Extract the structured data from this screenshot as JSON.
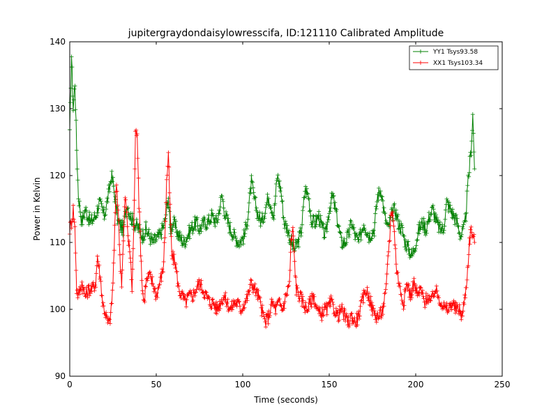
{
  "chart_data": {
    "type": "line",
    "title": "jupitergraydondaisylowresscifa, ID:121110 Calibrated Amplitude",
    "xlabel": "Time (seconds)",
    "ylabel": "Power in Kelvin",
    "xlim": [
      0,
      250
    ],
    "ylim": [
      90,
      140
    ],
    "xticks": [
      "0",
      "50",
      "100",
      "150",
      "200",
      "250"
    ],
    "yticks": [
      "90",
      "100",
      "110",
      "120",
      "130",
      "140"
    ],
    "grid": false,
    "legend_position": "top-right",
    "marker": "plus",
    "series": [
      {
        "name": "YY1 Tsys93.58",
        "color": "#008000",
        "anchors": [
          [
            0,
            126
          ],
          [
            1,
            138
          ],
          [
            2,
            130
          ],
          [
            3,
            134
          ],
          [
            4,
            124
          ],
          [
            5,
            117
          ],
          [
            6,
            115
          ],
          [
            7,
            113
          ],
          [
            9,
            115
          ],
          [
            12,
            113
          ],
          [
            15,
            114
          ],
          [
            17,
            116
          ],
          [
            20,
            114
          ],
          [
            23,
            118
          ],
          [
            24,
            120
          ],
          [
            25,
            119
          ],
          [
            28,
            113
          ],
          [
            31,
            112
          ],
          [
            33,
            116
          ],
          [
            35,
            114
          ],
          [
            37,
            113
          ],
          [
            40,
            112
          ],
          [
            42,
            111
          ],
          [
            44,
            112
          ],
          [
            48,
            110
          ],
          [
            52,
            111
          ],
          [
            55,
            113
          ],
          [
            57,
            117
          ],
          [
            58,
            112
          ],
          [
            60,
            113
          ],
          [
            63,
            111
          ],
          [
            66,
            110
          ],
          [
            70,
            112
          ],
          [
            73,
            113
          ],
          [
            75,
            112
          ],
          [
            78,
            113
          ],
          [
            80,
            113
          ],
          [
            82,
            114
          ],
          [
            85,
            113
          ],
          [
            88,
            117
          ],
          [
            90,
            114
          ],
          [
            93,
            112
          ],
          [
            95,
            111
          ],
          [
            98,
            110
          ],
          [
            101,
            111
          ],
          [
            103,
            114
          ],
          [
            105,
            119
          ],
          [
            107,
            116
          ],
          [
            109,
            114
          ],
          [
            111,
            113
          ],
          [
            113,
            115
          ],
          [
            115,
            117
          ],
          [
            118,
            114
          ],
          [
            120,
            120
          ],
          [
            122,
            118
          ],
          [
            124,
            113
          ],
          [
            126,
            112
          ],
          [
            128,
            110
          ],
          [
            130,
            109
          ],
          [
            132,
            110
          ],
          [
            134,
            112
          ],
          [
            136,
            118
          ],
          [
            138,
            117
          ],
          [
            140,
            113
          ],
          [
            142,
            113
          ],
          [
            144,
            114
          ],
          [
            146,
            112
          ],
          [
            148,
            111
          ],
          [
            150,
            115
          ],
          [
            152,
            117
          ],
          [
            155,
            113
          ],
          [
            157,
            110
          ],
          [
            159,
            110
          ],
          [
            161,
            111
          ],
          [
            163,
            113
          ],
          [
            165,
            111
          ],
          [
            167,
            110
          ],
          [
            170,
            113
          ],
          [
            173,
            111
          ],
          [
            176,
            112
          ],
          [
            178,
            117
          ],
          [
            180,
            118
          ],
          [
            182,
            114
          ],
          [
            184,
            112
          ],
          [
            186,
            114
          ],
          [
            188,
            115
          ],
          [
            190,
            113
          ],
          [
            192,
            112
          ],
          [
            194,
            110
          ],
          [
            196,
            109
          ],
          [
            198,
            108
          ],
          [
            200,
            110
          ],
          [
            202,
            112
          ],
          [
            204,
            113
          ],
          [
            206,
            112
          ],
          [
            208,
            114
          ],
          [
            210,
            115
          ],
          [
            212,
            113
          ],
          [
            214,
            112
          ],
          [
            216,
            112
          ],
          [
            218,
            116
          ],
          [
            220,
            115
          ],
          [
            222,
            114
          ],
          [
            224,
            113
          ],
          [
            226,
            111
          ],
          [
            228,
            112
          ],
          [
            229,
            114
          ],
          [
            230,
            118
          ],
          [
            231,
            121
          ],
          [
            232,
            124
          ],
          [
            233,
            129
          ],
          [
            234,
            121
          ]
        ]
      },
      {
        "name": "XX1 Tsys103.34",
        "color": "#ff0000",
        "anchors": [
          [
            0,
            112
          ],
          [
            1,
            113
          ],
          [
            2,
            115
          ],
          [
            3,
            112
          ],
          [
            4,
            103
          ],
          [
            5,
            102
          ],
          [
            7,
            104
          ],
          [
            9,
            102
          ],
          [
            11,
            103
          ],
          [
            13,
            103
          ],
          [
            15,
            104
          ],
          [
            16,
            108
          ],
          [
            17,
            106
          ],
          [
            18,
            104
          ],
          [
            19,
            101
          ],
          [
            20,
            100
          ],
          [
            21,
            99
          ],
          [
            22,
            98
          ],
          [
            23,
            98
          ],
          [
            24,
            100
          ],
          [
            25,
            104
          ],
          [
            26,
            112
          ],
          [
            27,
            119
          ],
          [
            28,
            115
          ],
          [
            29,
            108
          ],
          [
            30,
            104
          ],
          [
            31,
            110
          ],
          [
            32,
            117
          ],
          [
            33,
            114
          ],
          [
            34,
            110
          ],
          [
            35,
            108
          ],
          [
            36,
            103
          ],
          [
            37,
            112
          ],
          [
            38,
            126
          ],
          [
            39,
            127
          ],
          [
            40,
            116
          ],
          [
            41,
            109
          ],
          [
            42,
            103
          ],
          [
            43,
            101
          ],
          [
            44,
            104
          ],
          [
            46,
            105
          ],
          [
            48,
            104
          ],
          [
            50,
            102
          ],
          [
            52,
            104
          ],
          [
            54,
            106
          ],
          [
            55,
            111
          ],
          [
            56,
            119
          ],
          [
            57,
            123
          ],
          [
            58,
            115
          ],
          [
            59,
            108
          ],
          [
            61,
            107
          ],
          [
            63,
            103
          ],
          [
            65,
            102
          ],
          [
            67,
            101
          ],
          [
            69,
            102
          ],
          [
            71,
            102
          ],
          [
            73,
            103
          ],
          [
            75,
            104
          ],
          [
            77,
            103
          ],
          [
            79,
            102
          ],
          [
            81,
            101
          ],
          [
            83,
            101
          ],
          [
            85,
            100
          ],
          [
            87,
            101
          ],
          [
            89,
            102
          ],
          [
            91,
            101
          ],
          [
            93,
            100
          ],
          [
            95,
            101
          ],
          [
            97,
            101
          ],
          [
            99,
            100
          ],
          [
            101,
            101
          ],
          [
            103,
            102
          ],
          [
            105,
            104
          ],
          [
            107,
            103
          ],
          [
            109,
            102
          ],
          [
            111,
            100
          ],
          [
            113,
            98
          ],
          [
            115,
            99
          ],
          [
            117,
            101
          ],
          [
            119,
            100
          ],
          [
            121,
            101
          ],
          [
            123,
            100
          ],
          [
            125,
            102
          ],
          [
            127,
            104
          ],
          [
            128,
            110
          ],
          [
            129,
            112
          ],
          [
            130,
            107
          ],
          [
            131,
            103
          ],
          [
            133,
            102
          ],
          [
            135,
            101
          ],
          [
            137,
            100
          ],
          [
            139,
            101
          ],
          [
            141,
            102
          ],
          [
            143,
            100
          ],
          [
            145,
            99
          ],
          [
            147,
            100
          ],
          [
            149,
            100
          ],
          [
            151,
            101
          ],
          [
            153,
            100
          ],
          [
            155,
            99
          ],
          [
            157,
            100
          ],
          [
            159,
            99
          ],
          [
            161,
            98
          ],
          [
            163,
            99
          ],
          [
            165,
            98
          ],
          [
            167,
            99
          ],
          [
            169,
            101
          ],
          [
            171,
            103
          ],
          [
            173,
            102
          ],
          [
            175,
            100
          ],
          [
            177,
            99
          ],
          [
            179,
            99
          ],
          [
            181,
            100
          ],
          [
            183,
            103
          ],
          [
            184,
            108
          ],
          [
            185,
            111
          ],
          [
            186,
            115
          ],
          [
            187,
            114
          ],
          [
            188,
            110
          ],
          [
            189,
            106
          ],
          [
            191,
            103
          ],
          [
            193,
            101
          ],
          [
            195,
            104
          ],
          [
            197,
            102
          ],
          [
            199,
            104
          ],
          [
            201,
            102
          ],
          [
            203,
            103
          ],
          [
            205,
            101
          ],
          [
            207,
            102
          ],
          [
            209,
            101
          ],
          [
            211,
            103
          ],
          [
            213,
            102
          ],
          [
            215,
            101
          ],
          [
            217,
            100
          ],
          [
            219,
            100
          ],
          [
            221,
            101
          ],
          [
            223,
            100
          ],
          [
            225,
            100
          ],
          [
            227,
            99
          ],
          [
            229,
            103
          ],
          [
            230,
            106
          ],
          [
            231,
            110
          ],
          [
            232,
            112
          ],
          [
            233,
            111
          ],
          [
            234,
            110
          ]
        ]
      }
    ]
  }
}
